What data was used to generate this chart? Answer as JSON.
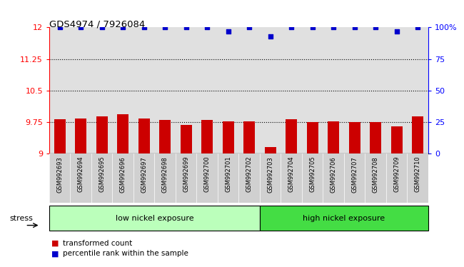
{
  "title": "GDS4974 / 7926084",
  "categories": [
    "GSM992693",
    "GSM992694",
    "GSM992695",
    "GSM992696",
    "GSM992697",
    "GSM992698",
    "GSM992699",
    "GSM992700",
    "GSM992701",
    "GSM992702",
    "GSM992703",
    "GSM992704",
    "GSM992705",
    "GSM992706",
    "GSM992707",
    "GSM992708",
    "GSM992709",
    "GSM992710"
  ],
  "bar_values": [
    9.82,
    9.83,
    9.88,
    9.93,
    9.84,
    9.8,
    9.69,
    9.81,
    9.77,
    9.76,
    9.15,
    9.82,
    9.75,
    9.76,
    9.75,
    9.75,
    9.65,
    9.89
  ],
  "percentile_values": [
    100,
    100,
    100,
    100,
    100,
    100,
    100,
    100,
    97,
    100,
    93,
    100,
    100,
    100,
    100,
    100,
    97,
    100
  ],
  "bar_color": "#cc0000",
  "dot_color": "#0000cc",
  "ylim_left": [
    9.0,
    12.0
  ],
  "ylim_right": [
    0,
    100
  ],
  "yticks_left": [
    9.0,
    9.75,
    10.5,
    11.25,
    12.0
  ],
  "ytick_left_labels": [
    "9",
    "9.75",
    "10.5",
    "11.25",
    "12"
  ],
  "yticks_right": [
    0,
    25,
    50,
    75,
    100
  ],
  "ytick_right_labels": [
    "0",
    "25",
    "50",
    "75",
    "100%"
  ],
  "hlines": [
    9.75,
    10.5,
    11.25
  ],
  "group1_label": "low nickel exposure",
  "group2_label": "high nickel exposure",
  "group1_count": 10,
  "group2_count": 8,
  "stress_label": "stress",
  "legend_bar_label": "transformed count",
  "legend_dot_label": "percentile rank within the sample",
  "group1_color": "#bbffbb",
  "group2_color": "#44dd44",
  "bg_color": "#ffffff",
  "plot_bg_color": "#e0e0e0",
  "xtick_bg_color": "#d0d0d0"
}
